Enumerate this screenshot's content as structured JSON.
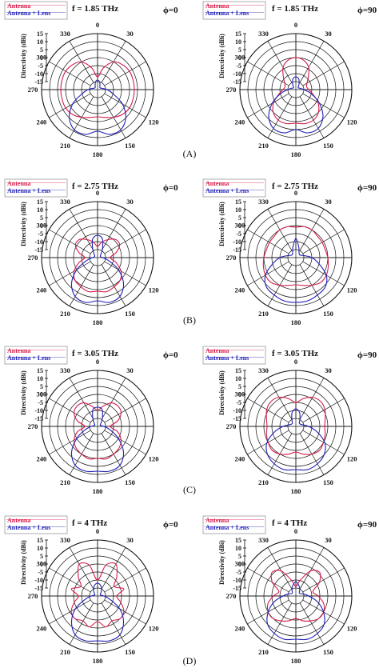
{
  "figure": {
    "legend_labels": [
      "Antenna",
      "Antenna + Lens"
    ],
    "ylabel": "Directivity (dBi)",
    "angle_labels": [
      "0",
      "30",
      "330",
      "300",
      "270",
      "240",
      "210",
      "180",
      "150",
      "120"
    ],
    "panel_labels": [
      "(A)",
      "(B)",
      "(C)",
      "(D)"
    ],
    "colors": {
      "antenna": "#d81b4a",
      "antenna_lens": "#1f1fb8"
    }
  },
  "chart_data": [
    {
      "type": "polar",
      "panel": "(A)",
      "title": "f = 1.85 THz",
      "phi_label": "ϕ=0",
      "ylabel": "Directivity (dBi)",
      "rlim": [
        -20,
        15
      ],
      "r_ticks": [
        15,
        10,
        5,
        0,
        -5,
        -10,
        -15
      ],
      "series": [
        {
          "name": "Antenna",
          "theta": [
            0,
            15,
            30,
            45,
            60,
            75,
            90,
            105,
            120,
            135,
            150,
            165,
            180,
            195,
            210,
            225,
            240,
            255,
            270,
            285,
            300,
            315,
            330,
            345
          ],
          "r": [
            -12,
            -6,
            0,
            2,
            3,
            3,
            3,
            3,
            3,
            2,
            0,
            -2,
            -3,
            -2,
            0,
            2,
            3,
            3,
            3,
            3,
            3,
            2,
            0,
            -6
          ]
        },
        {
          "name": "Antenna + Lens",
          "theta": [
            0,
            15,
            30,
            45,
            60,
            75,
            90,
            105,
            120,
            135,
            150,
            165,
            180,
            195,
            210,
            225,
            240,
            255,
            270,
            285,
            300,
            315,
            330,
            345
          ],
          "r": [
            -14,
            -15,
            -17,
            -18,
            -18,
            -17,
            -14,
            -10,
            -2,
            5,
            9,
            9,
            6,
            9,
            9,
            5,
            -2,
            -10,
            -14,
            -17,
            -18,
            -18,
            -17,
            -15
          ]
        }
      ]
    },
    {
      "type": "polar",
      "panel": "(A)",
      "title": "f = 1.85 THz",
      "phi_label": "ϕ=90",
      "ylabel": "Directivity (dBi)",
      "rlim": [
        -20,
        15
      ],
      "r_ticks": [
        15,
        10,
        5,
        0,
        -5,
        -10,
        -15
      ],
      "series": [
        {
          "name": "Antenna",
          "theta": [
            0,
            15,
            30,
            45,
            60,
            75,
            90,
            105,
            120,
            135,
            150,
            165,
            180,
            195,
            210,
            225,
            240,
            255,
            270,
            285,
            300,
            315,
            330,
            345
          ],
          "r": [
            0,
            -1,
            -4,
            -9,
            -12,
            -13,
            -12,
            -9,
            -4,
            0,
            2,
            2,
            1,
            2,
            2,
            0,
            -4,
            -9,
            -12,
            -13,
            -12,
            -9,
            -4,
            -1
          ]
        },
        {
          "name": "Antenna + Lens",
          "theta": [
            0,
            15,
            30,
            45,
            60,
            75,
            90,
            105,
            120,
            135,
            150,
            165,
            180,
            195,
            210,
            225,
            240,
            255,
            270,
            285,
            300,
            315,
            330,
            345
          ],
          "r": [
            -12,
            -13,
            -16,
            -18,
            -18,
            -17,
            -15,
            -10,
            -3,
            4,
            8,
            8,
            5,
            8,
            8,
            4,
            -3,
            -10,
            -15,
            -17,
            -18,
            -18,
            -16,
            -13
          ]
        }
      ]
    },
    {
      "type": "polar",
      "panel": "(B)",
      "title": "f = 2.75 THz",
      "phi_label": "ϕ=0",
      "ylabel": "Directivity (dBi)",
      "rlim": [
        -20,
        15
      ],
      "r_ticks": [
        15,
        10,
        5,
        0,
        -5,
        -10,
        -15
      ],
      "series": [
        {
          "name": "Antenna",
          "theta": [
            0,
            15,
            30,
            45,
            60,
            75,
            90,
            105,
            120,
            135,
            150,
            165,
            180,
            195,
            210,
            225,
            240,
            255,
            270,
            285,
            300,
            315,
            330,
            345
          ],
          "r": [
            -13,
            -10,
            -7,
            -4,
            -4,
            -8,
            -12,
            -8,
            -3,
            0,
            1,
            2,
            1,
            2,
            1,
            0,
            -3,
            -8,
            -12,
            -8,
            -4,
            -4,
            -7,
            -10
          ]
        },
        {
          "name": "Antenna + Lens",
          "theta": [
            0,
            15,
            30,
            45,
            60,
            75,
            90,
            105,
            120,
            135,
            150,
            165,
            180,
            195,
            210,
            225,
            240,
            255,
            270,
            285,
            300,
            315,
            330,
            345
          ],
          "r": [
            -6,
            -8,
            -14,
            -17,
            -18,
            -18,
            -17,
            -13,
            -5,
            3,
            8,
            9,
            7,
            9,
            8,
            3,
            -5,
            -13,
            -17,
            -18,
            -18,
            -17,
            -14,
            -8
          ]
        }
      ]
    },
    {
      "type": "polar",
      "panel": "(B)",
      "title": "f = 2.75 THz",
      "phi_label": "ϕ=90",
      "ylabel": "Directivity (dBi)",
      "rlim": [
        -20,
        15
      ],
      "r_ticks": [
        15,
        10,
        5,
        0,
        -5,
        -10,
        -15
      ],
      "series": [
        {
          "name": "Antenna",
          "theta": [
            0,
            15,
            30,
            45,
            60,
            75,
            90,
            105,
            120,
            135,
            150,
            165,
            180,
            195,
            210,
            225,
            240,
            255,
            270,
            285,
            300,
            315,
            330,
            345
          ],
          "r": [
            -1,
            0,
            0,
            -1,
            -1,
            -1,
            0,
            1,
            2,
            2,
            0,
            -2,
            -3,
            -2,
            0,
            2,
            2,
            1,
            0,
            -1,
            -1,
            -1,
            0,
            0
          ]
        },
        {
          "name": "Antenna + Lens",
          "theta": [
            0,
            15,
            30,
            45,
            60,
            75,
            90,
            105,
            120,
            135,
            150,
            165,
            180,
            195,
            210,
            225,
            240,
            255,
            270,
            285,
            300,
            315,
            330,
            345
          ],
          "r": [
            -8,
            -13,
            -16,
            -17,
            -17,
            -15,
            -10,
            -5,
            2,
            6,
            7,
            8,
            8,
            8,
            7,
            6,
            2,
            -5,
            -10,
            -15,
            -17,
            -17,
            -16,
            -13
          ]
        }
      ]
    },
    {
      "type": "polar",
      "panel": "(C)",
      "title": "f = 3.05 THz",
      "phi_label": "ϕ=0",
      "ylabel": "Directivity (dBi)",
      "rlim": [
        -20,
        15
      ],
      "r_ticks": [
        15,
        10,
        5,
        0,
        -5,
        -10,
        -15
      ],
      "series": [
        {
          "name": "Antenna",
          "theta": [
            0,
            15,
            30,
            45,
            60,
            75,
            90,
            105,
            120,
            135,
            150,
            165,
            180,
            195,
            210,
            225,
            240,
            255,
            270,
            285,
            300,
            315,
            330,
            345
          ],
          "r": [
            -10,
            -7,
            -3,
            -2,
            -3,
            -7,
            -12,
            -7,
            -3,
            -1,
            0,
            1,
            0,
            1,
            0,
            -1,
            -3,
            -7,
            -12,
            -7,
            -3,
            -2,
            -3,
            -7
          ]
        },
        {
          "name": "Antenna + Lens",
          "theta": [
            0,
            15,
            30,
            45,
            60,
            75,
            90,
            105,
            120,
            135,
            150,
            165,
            180,
            195,
            210,
            225,
            240,
            255,
            270,
            285,
            300,
            315,
            330,
            345
          ],
          "r": [
            -8,
            -9,
            -14,
            -17,
            -18,
            -18,
            -16,
            -12,
            -5,
            3,
            8,
            9,
            8,
            9,
            8,
            3,
            -5,
            -12,
            -16,
            -18,
            -18,
            -17,
            -14,
            -9
          ]
        }
      ]
    },
    {
      "type": "polar",
      "panel": "(C)",
      "title": "f = 3.05 THz",
      "phi_label": "ϕ=90",
      "ylabel": "Directivity (dBi)",
      "rlim": [
        -20,
        15
      ],
      "r_ticks": [
        15,
        10,
        5,
        0,
        -5,
        -10,
        -15
      ],
      "series": [
        {
          "name": "Antenna",
          "theta": [
            0,
            15,
            30,
            45,
            60,
            75,
            90,
            105,
            120,
            135,
            150,
            165,
            180,
            195,
            210,
            225,
            240,
            255,
            270,
            285,
            300,
            315,
            330,
            345
          ],
          "r": [
            -5,
            -2,
            1,
            2,
            1,
            -1,
            -2,
            -1,
            0,
            1,
            0,
            -2,
            -4,
            -2,
            0,
            1,
            0,
            -1,
            -2,
            -1,
            1,
            2,
            1,
            -2
          ]
        },
        {
          "name": "Antenna + Lens",
          "theta": [
            0,
            15,
            30,
            45,
            60,
            75,
            90,
            105,
            120,
            135,
            150,
            165,
            180,
            195,
            210,
            225,
            240,
            255,
            270,
            285,
            300,
            315,
            330,
            345
          ],
          "r": [
            -9,
            -11,
            -15,
            -17,
            -17,
            -16,
            -12,
            -6,
            1,
            5,
            7,
            8,
            7,
            8,
            7,
            5,
            1,
            -6,
            -12,
            -16,
            -17,
            -17,
            -15,
            -11
          ]
        }
      ]
    },
    {
      "type": "polar",
      "panel": "(D)",
      "title": "f = 4 THz",
      "phi_label": "ϕ=0",
      "ylabel": "Directivity (dBi)",
      "rlim": [
        -20,
        15
      ],
      "r_ticks": [
        15,
        10,
        5,
        0,
        -5,
        -10,
        -15
      ],
      "series": [
        {
          "name": "Antenna",
          "theta": [
            0,
            15,
            30,
            45,
            60,
            75,
            90,
            105,
            120,
            135,
            150,
            165,
            180,
            195,
            210,
            225,
            240,
            255,
            270,
            285,
            300,
            315,
            330,
            345
          ],
          "r": [
            -10,
            0,
            3,
            -3,
            -8,
            -3,
            -8,
            -5,
            -1,
            0,
            -2,
            0,
            -4,
            0,
            -2,
            0,
            -1,
            -5,
            -8,
            -3,
            -8,
            -3,
            3,
            0
          ]
        },
        {
          "name": "Antenna + Lens",
          "theta": [
            0,
            15,
            30,
            45,
            60,
            75,
            90,
            105,
            120,
            135,
            150,
            165,
            180,
            195,
            210,
            225,
            240,
            255,
            270,
            285,
            300,
            315,
            330,
            345
          ],
          "r": [
            -12,
            -13,
            -15,
            -17,
            -18,
            -18,
            -16,
            -12,
            -4,
            3,
            8,
            9,
            8,
            9,
            8,
            3,
            -4,
            -12,
            -16,
            -18,
            -18,
            -17,
            -15,
            -13
          ]
        }
      ]
    },
    {
      "type": "polar",
      "panel": "(D)",
      "title": "f = 4 THz",
      "phi_label": "ϕ=90",
      "ylabel": "Directivity (dBi)",
      "rlim": [
        -20,
        15
      ],
      "r_ticks": [
        15,
        10,
        5,
        0,
        -5,
        -10,
        -15
      ],
      "series": [
        {
          "name": "Antenna",
          "theta": [
            0,
            15,
            30,
            45,
            60,
            75,
            90,
            105,
            120,
            135,
            150,
            165,
            180,
            195,
            210,
            225,
            240,
            255,
            270,
            285,
            300,
            315,
            330,
            345
          ],
          "r": [
            -14,
            -10,
            -2,
            1,
            -3,
            -9,
            -6,
            -2,
            0,
            0,
            -2,
            -4,
            -6,
            -4,
            -2,
            0,
            0,
            -2,
            -6,
            -9,
            -3,
            1,
            -2,
            -10
          ]
        },
        {
          "name": "Antenna + Lens",
          "theta": [
            0,
            15,
            30,
            45,
            60,
            75,
            90,
            105,
            120,
            135,
            150,
            165,
            180,
            195,
            210,
            225,
            240,
            255,
            270,
            285,
            300,
            315,
            330,
            345
          ],
          "r": [
            -11,
            -13,
            -15,
            -17,
            -17,
            -15,
            -12,
            -6,
            0,
            5,
            7,
            8,
            7,
            8,
            7,
            5,
            0,
            -6,
            -12,
            -15,
            -17,
            -17,
            -15,
            -13
          ]
        }
      ]
    }
  ]
}
